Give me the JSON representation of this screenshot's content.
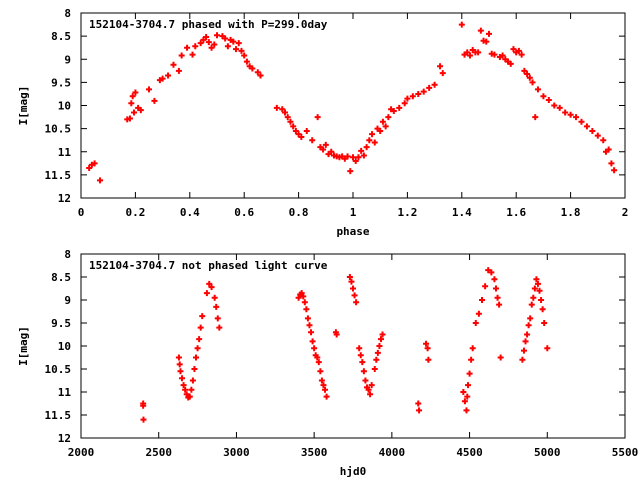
{
  "chart_data": [
    {
      "type": "scatter",
      "title": "152104-3704.7 phased with P=299.0day",
      "xlabel": "phase",
      "ylabel": "I[mag]",
      "xlim": [
        0,
        2
      ],
      "ylim": [
        12,
        8
      ],
      "y_inverted": true,
      "grid": false,
      "marker": "plus",
      "color": "#ff0000",
      "xticks": [
        0,
        0.2,
        0.4,
        0.6,
        0.8,
        1,
        1.2,
        1.4,
        1.6,
        1.8,
        2
      ],
      "xtick_labels": [
        "0",
        "0.2",
        "0.4",
        "0.6",
        "0.8",
        "1",
        "1.2",
        "1.4",
        "1.6",
        "1.8",
        "2"
      ],
      "yticks": [
        8,
        8.5,
        9,
        9.5,
        10,
        10.5,
        11,
        11.5,
        12
      ],
      "ytick_labels": [
        "8",
        "8.5",
        "9",
        "9.5",
        "10",
        "10.5",
        "11",
        "11.5",
        "12"
      ],
      "points": [
        [
          0.03,
          11.35
        ],
        [
          0.04,
          11.28
        ],
        [
          0.05,
          11.25
        ],
        [
          0.07,
          11.62
        ],
        [
          0.17,
          10.3
        ],
        [
          0.18,
          10.28
        ],
        [
          0.185,
          9.95
        ],
        [
          0.19,
          9.8
        ],
        [
          0.195,
          10.15
        ],
        [
          0.2,
          9.72
        ],
        [
          0.21,
          10.05
        ],
        [
          0.22,
          10.1
        ],
        [
          0.25,
          9.65
        ],
        [
          0.27,
          9.9
        ],
        [
          0.29,
          9.45
        ],
        [
          0.3,
          9.42
        ],
        [
          0.32,
          9.35
        ],
        [
          0.34,
          9.12
        ],
        [
          0.36,
          9.25
        ],
        [
          0.37,
          8.92
        ],
        [
          0.39,
          8.75
        ],
        [
          0.41,
          8.9
        ],
        [
          0.42,
          8.72
        ],
        [
          0.44,
          8.65
        ],
        [
          0.45,
          8.58
        ],
        [
          0.46,
          8.52
        ],
        [
          0.47,
          8.63
        ],
        [
          0.48,
          8.75
        ],
        [
          0.49,
          8.68
        ],
        [
          0.5,
          8.48
        ],
        [
          0.52,
          8.5
        ],
        [
          0.53,
          8.55
        ],
        [
          0.54,
          8.72
        ],
        [
          0.55,
          8.58
        ],
        [
          0.56,
          8.62
        ],
        [
          0.57,
          8.78
        ],
        [
          0.58,
          8.65
        ],
        [
          0.59,
          8.82
        ],
        [
          0.6,
          8.92
        ],
        [
          0.61,
          9.05
        ],
        [
          0.62,
          9.15
        ],
        [
          0.63,
          9.2
        ],
        [
          0.65,
          9.28
        ],
        [
          0.66,
          9.35
        ],
        [
          0.72,
          10.05
        ],
        [
          0.74,
          10.08
        ],
        [
          0.75,
          10.15
        ],
        [
          0.76,
          10.25
        ],
        [
          0.77,
          10.35
        ],
        [
          0.78,
          10.45
        ],
        [
          0.79,
          10.55
        ],
        [
          0.8,
          10.62
        ],
        [
          0.81,
          10.68
        ],
        [
          0.83,
          10.55
        ],
        [
          0.85,
          10.75
        ],
        [
          0.87,
          10.25
        ],
        [
          0.88,
          10.9
        ],
        [
          0.89,
          10.95
        ],
        [
          0.9,
          10.85
        ],
        [
          0.91,
          11.05
        ],
        [
          0.92,
          11.0
        ],
        [
          0.93,
          11.08
        ],
        [
          0.94,
          11.1
        ],
        [
          0.95,
          11.12
        ],
        [
          0.96,
          11.1
        ],
        [
          0.97,
          11.15
        ],
        [
          0.98,
          11.1
        ],
        [
          0.99,
          11.42
        ],
        [
          1.0,
          11.12
        ],
        [
          1.01,
          11.2
        ],
        [
          1.02,
          11.12
        ],
        [
          1.03,
          10.98
        ],
        [
          1.04,
          11.08
        ],
        [
          1.05,
          10.9
        ],
        [
          1.06,
          10.75
        ],
        [
          1.07,
          10.62
        ],
        [
          1.08,
          10.8
        ],
        [
          1.09,
          10.5
        ],
        [
          1.1,
          10.55
        ],
        [
          1.11,
          10.35
        ],
        [
          1.12,
          10.45
        ],
        [
          1.13,
          10.25
        ],
        [
          1.14,
          10.08
        ],
        [
          1.15,
          10.12
        ],
        [
          1.17,
          10.05
        ],
        [
          1.19,
          9.95
        ],
        [
          1.2,
          9.85
        ],
        [
          1.22,
          9.8
        ],
        [
          1.24,
          9.75
        ],
        [
          1.26,
          9.7
        ],
        [
          1.28,
          9.62
        ],
        [
          1.3,
          9.55
        ],
        [
          1.32,
          9.15
        ],
        [
          1.33,
          9.3
        ],
        [
          1.4,
          8.25
        ],
        [
          1.41,
          8.9
        ],
        [
          1.42,
          8.85
        ],
        [
          1.43,
          8.92
        ],
        [
          1.44,
          8.8
        ],
        [
          1.45,
          8.85
        ],
        [
          1.46,
          8.85
        ],
        [
          1.47,
          8.38
        ],
        [
          1.48,
          8.6
        ],
        [
          1.49,
          8.62
        ],
        [
          1.5,
          8.45
        ],
        [
          1.51,
          8.88
        ],
        [
          1.52,
          8.9
        ],
        [
          1.54,
          8.95
        ],
        [
          1.55,
          8.92
        ],
        [
          1.56,
          9.0
        ],
        [
          1.57,
          9.05
        ],
        [
          1.58,
          9.1
        ],
        [
          1.59,
          8.78
        ],
        [
          1.6,
          8.85
        ],
        [
          1.61,
          8.82
        ],
        [
          1.62,
          8.9
        ],
        [
          1.63,
          9.25
        ],
        [
          1.64,
          9.32
        ],
        [
          1.65,
          9.4
        ],
        [
          1.66,
          9.5
        ],
        [
          1.67,
          10.25
        ],
        [
          1.68,
          9.65
        ],
        [
          1.7,
          9.8
        ],
        [
          1.72,
          9.88
        ],
        [
          1.74,
          10.0
        ],
        [
          1.76,
          10.05
        ],
        [
          1.78,
          10.15
        ],
        [
          1.8,
          10.2
        ],
        [
          1.82,
          10.25
        ],
        [
          1.84,
          10.35
        ],
        [
          1.86,
          10.45
        ],
        [
          1.88,
          10.55
        ],
        [
          1.9,
          10.65
        ],
        [
          1.92,
          10.75
        ],
        [
          1.93,
          11.0
        ],
        [
          1.94,
          10.95
        ],
        [
          1.95,
          11.25
        ],
        [
          1.96,
          11.4
        ]
      ]
    },
    {
      "type": "scatter",
      "title": "152104-3704.7 not phased light curve",
      "xlabel": "hjd0",
      "ylabel": "I[mag]",
      "xlim": [
        2000,
        5500
      ],
      "ylim": [
        12,
        8
      ],
      "y_inverted": true,
      "grid": false,
      "marker": "plus",
      "color": "#ff0000",
      "xticks": [
        2000,
        2500,
        3000,
        3500,
        4000,
        4500,
        5000,
        5500
      ],
      "xtick_labels": [
        "2000",
        "2500",
        "3000",
        "3500",
        "4000",
        "4500",
        "5000",
        "5500"
      ],
      "yticks": [
        8,
        8.5,
        9,
        9.5,
        10,
        10.5,
        11,
        11.5,
        12
      ],
      "ytick_labels": [
        "8",
        "8.5",
        "9",
        "9.5",
        "10",
        "10.5",
        "11",
        "11.5",
        "12"
      ],
      "points": [
        [
          2400,
          11.25
        ],
        [
          2400,
          11.3
        ],
        [
          2402,
          11.6
        ],
        [
          2630,
          10.25
        ],
        [
          2635,
          10.4
        ],
        [
          2640,
          10.55
        ],
        [
          2650,
          10.7
        ],
        [
          2660,
          10.85
        ],
        [
          2670,
          10.95
        ],
        [
          2680,
          11.05
        ],
        [
          2690,
          11.12
        ],
        [
          2700,
          11.1
        ],
        [
          2710,
          10.95
        ],
        [
          2720,
          10.75
        ],
        [
          2730,
          10.5
        ],
        [
          2740,
          10.25
        ],
        [
          2750,
          10.05
        ],
        [
          2760,
          9.85
        ],
        [
          2770,
          9.6
        ],
        [
          2780,
          9.35
        ],
        [
          2810,
          8.85
        ],
        [
          2825,
          8.65
        ],
        [
          2840,
          8.72
        ],
        [
          2860,
          8.95
        ],
        [
          2870,
          9.15
        ],
        [
          2880,
          9.4
        ],
        [
          2890,
          9.6
        ],
        [
          3400,
          8.95
        ],
        [
          3410,
          8.88
        ],
        [
          3420,
          8.85
        ],
        [
          3430,
          8.92
        ],
        [
          3440,
          9.05
        ],
        [
          3450,
          9.2
        ],
        [
          3460,
          9.4
        ],
        [
          3470,
          9.55
        ],
        [
          3480,
          9.7
        ],
        [
          3490,
          9.9
        ],
        [
          3500,
          10.05
        ],
        [
          3510,
          10.2
        ],
        [
          3520,
          10.25
        ],
        [
          3530,
          10.35
        ],
        [
          3540,
          10.55
        ],
        [
          3550,
          10.75
        ],
        [
          3560,
          10.85
        ],
        [
          3570,
          10.95
        ],
        [
          3580,
          11.1
        ],
        [
          3640,
          9.7
        ],
        [
          3645,
          9.75
        ],
        [
          3730,
          8.5
        ],
        [
          3740,
          8.6
        ],
        [
          3750,
          8.75
        ],
        [
          3760,
          8.9
        ],
        [
          3770,
          9.05
        ],
        [
          3790,
          10.05
        ],
        [
          3800,
          10.2
        ],
        [
          3810,
          10.35
        ],
        [
          3820,
          10.55
        ],
        [
          3830,
          10.75
        ],
        [
          3840,
          10.9
        ],
        [
          3850,
          10.95
        ],
        [
          3860,
          11.05
        ],
        [
          3870,
          10.85
        ],
        [
          3890,
          10.5
        ],
        [
          3900,
          10.3
        ],
        [
          3910,
          10.15
        ],
        [
          3920,
          10.0
        ],
        [
          3930,
          9.85
        ],
        [
          3940,
          9.75
        ],
        [
          4170,
          11.25
        ],
        [
          4175,
          11.4
        ],
        [
          4220,
          9.95
        ],
        [
          4230,
          10.05
        ],
        [
          4235,
          10.3
        ],
        [
          4460,
          11.0
        ],
        [
          4470,
          11.2
        ],
        [
          4480,
          11.4
        ],
        [
          4485,
          11.1
        ],
        [
          4490,
          10.85
        ],
        [
          4500,
          10.6
        ],
        [
          4510,
          10.3
        ],
        [
          4520,
          10.05
        ],
        [
          4540,
          9.5
        ],
        [
          4560,
          9.3
        ],
        [
          4580,
          9.0
        ],
        [
          4600,
          8.7
        ],
        [
          4620,
          8.35
        ],
        [
          4640,
          8.4
        ],
        [
          4660,
          8.55
        ],
        [
          4670,
          8.75
        ],
        [
          4680,
          8.95
        ],
        [
          4690,
          9.1
        ],
        [
          4700,
          10.25
        ],
        [
          4840,
          10.3
        ],
        [
          4850,
          10.1
        ],
        [
          4860,
          9.9
        ],
        [
          4870,
          9.75
        ],
        [
          4880,
          9.55
        ],
        [
          4890,
          9.4
        ],
        [
          4900,
          9.1
        ],
        [
          4910,
          8.95
        ],
        [
          4920,
          8.75
        ],
        [
          4930,
          8.55
        ],
        [
          4940,
          8.65
        ],
        [
          4950,
          8.8
        ],
        [
          4960,
          9.0
        ],
        [
          4970,
          9.2
        ],
        [
          4980,
          9.5
        ],
        [
          5000,
          10.05
        ]
      ]
    }
  ]
}
